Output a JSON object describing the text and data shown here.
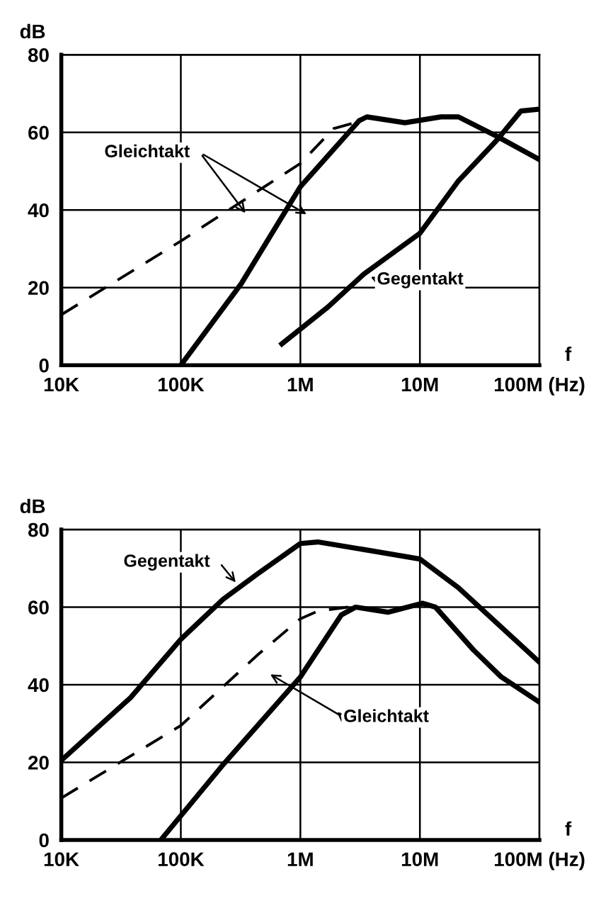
{
  "chart_data": [
    {
      "type": "line",
      "xlabel": "f",
      "ylabel": "dB",
      "log": "x",
      "grid": true,
      "legend": false,
      "marker": "none",
      "xlim": [
        10000,
        100000000
      ],
      "ylim": [
        0,
        80
      ],
      "xticks": [
        {
          "value": 10000,
          "label": "10K"
        },
        {
          "value": 100000,
          "label": "100K"
        },
        {
          "value": 1000000,
          "label": "1M"
        },
        {
          "value": 10000000,
          "label": "10M"
        },
        {
          "value": 100000000,
          "label": "100M (Hz)"
        }
      ],
      "yticks": [
        0,
        20,
        40,
        60,
        80
      ],
      "series": [
        {
          "color": "#000000",
          "line_style": "dashed",
          "x": [
            10000,
            100000,
            1000000,
            1900000,
            3300000
          ],
          "values": [
            13,
            32,
            52,
            61,
            63
          ]
        },
        {
          "color": "#000000",
          "line_style": "solid",
          "x": [
            100000,
            320000,
            1000000,
            3100000,
            3600000,
            7500000,
            15000000,
            21000000,
            44000000,
            100000000
          ],
          "values": [
            0,
            21,
            46,
            63,
            64,
            62.5,
            64,
            64,
            59,
            53
          ]
        },
        {
          "color": "#000000",
          "line_style": "solid",
          "x": [
            700000,
            1700000,
            3400000,
            10000000,
            21000000,
            44000000,
            70000000,
            100000000
          ],
          "values": [
            5.5,
            15,
            23.5,
            34,
            47.5,
            58,
            65.5,
            66
          ]
        }
      ],
      "annotations": [
        "Gleichtakt",
        "Gegentakt"
      ]
    },
    {
      "type": "line",
      "xlabel": "f",
      "ylabel": "dB",
      "log": "x",
      "grid": true,
      "legend": false,
      "marker": "none",
      "xlim": [
        10000,
        100000000
      ],
      "ylim": [
        0,
        80
      ],
      "xticks": [
        {
          "value": 10000,
          "label": "10K"
        },
        {
          "value": 100000,
          "label": "100K"
        },
        {
          "value": 1000000,
          "label": "1M"
        },
        {
          "value": 10000000,
          "label": "10M"
        },
        {
          "value": 100000000,
          "label": "100M (Hz)"
        }
      ],
      "yticks": [
        0,
        20,
        40,
        60,
        80
      ],
      "series": [
        {
          "color": "#000000",
          "line_style": "solid",
          "x": [
            10000,
            38000,
            100000,
            225000,
            440000,
            1000000,
            1400000,
            3800000,
            10000000,
            21000000,
            100000000
          ],
          "values": [
            20.5,
            36.7,
            51.7,
            62,
            68.6,
            76.4,
            76.8,
            74.6,
            72.4,
            65,
            45.8
          ]
        },
        {
          "color": "#000000",
          "line_style": "dashed",
          "x": [
            10000,
            100000,
            450000,
            1000000,
            1400000,
            2500000
          ],
          "values": [
            10.8,
            29.5,
            48,
            57,
            59,
            60
          ]
        },
        {
          "color": "#000000",
          "line_style": "solid",
          "x": [
            68000,
            220000,
            1000000,
            2200000,
            2900000,
            5400000,
            10500000,
            13500000,
            28000000,
            48000000,
            100000000
          ],
          "values": [
            0,
            19,
            42,
            58,
            60,
            58.7,
            61,
            60,
            49,
            42,
            35.5
          ]
        }
      ],
      "annotations": [
        "Gegentakt",
        "Gleichtakt"
      ]
    }
  ]
}
